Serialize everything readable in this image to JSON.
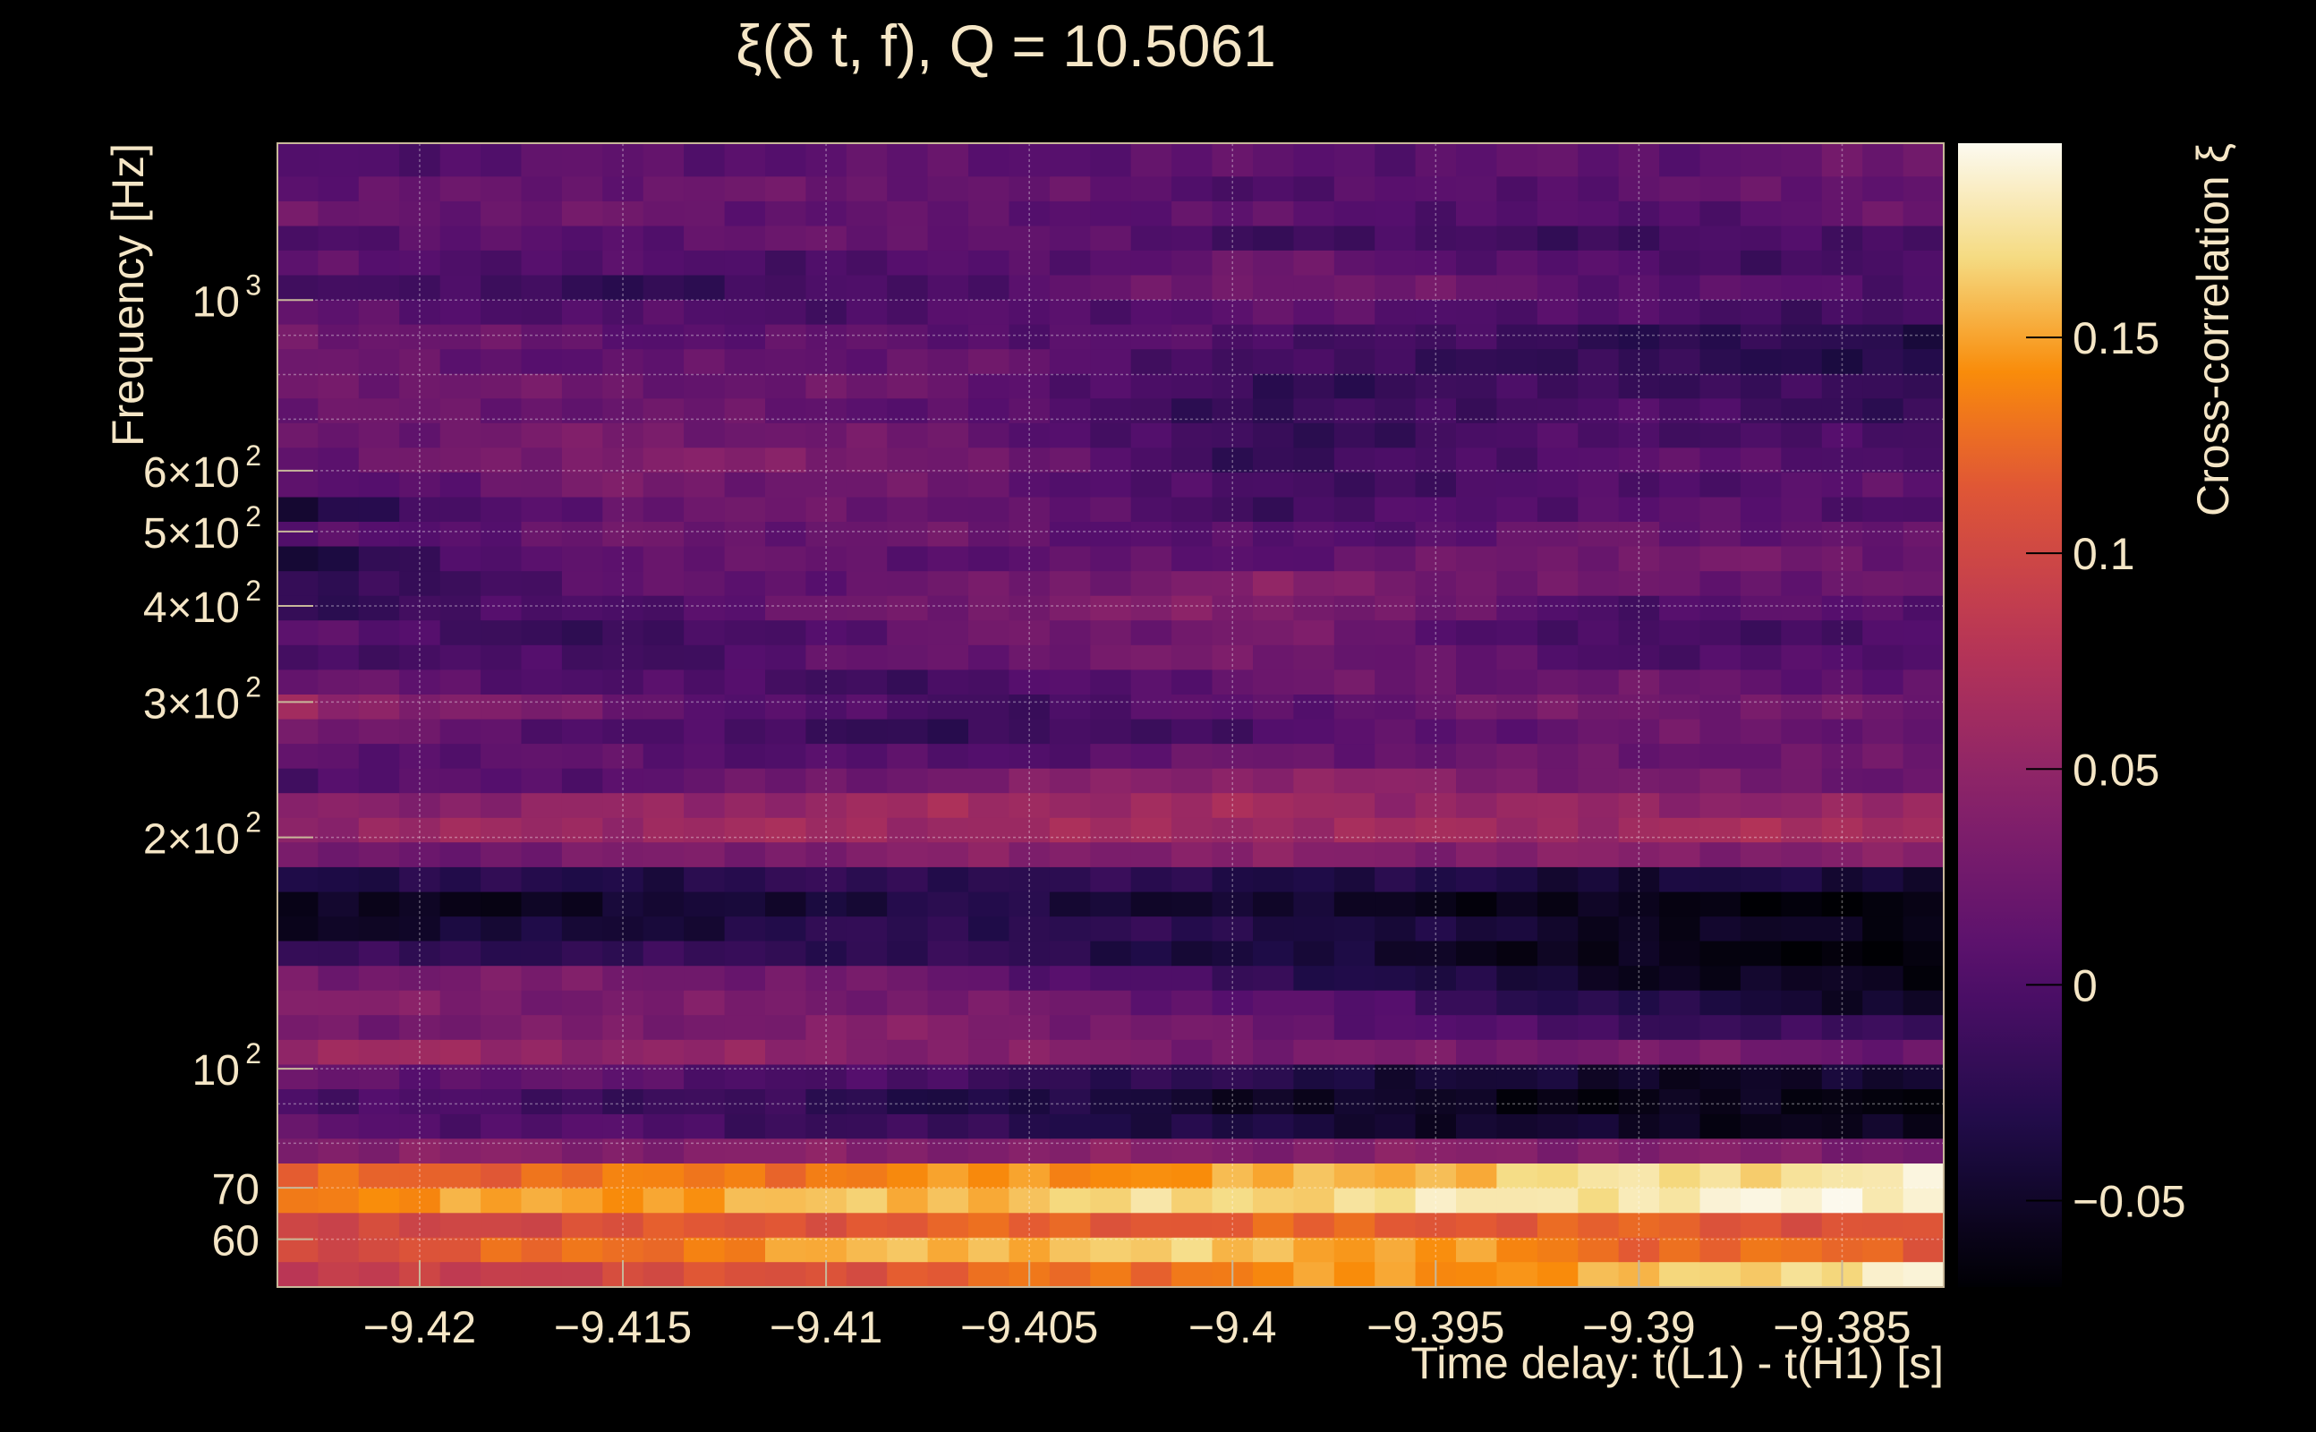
{
  "chart_data": {
    "type": "heatmap",
    "title": "ξ(δ t, f), Q = 10.5061",
    "xlabel": "Time delay: t(L1) - t(H1) [s]",
    "ylabel": "Frequency [Hz]",
    "colorbar_label": "Cross-correlation ξ",
    "x_range": [
      -9.4235,
      -9.3825
    ],
    "y_range": [
      52,
      1600
    ],
    "y_scale": "log",
    "z_range": [
      -0.07,
      0.195
    ],
    "grid": true,
    "x_ticks": [
      {
        "value": -9.42,
        "label": "−9.42"
      },
      {
        "value": -9.415,
        "label": "−9.415"
      },
      {
        "value": -9.41,
        "label": "−9.41"
      },
      {
        "value": -9.405,
        "label": "−9.405"
      },
      {
        "value": -9.4,
        "label": "−9.4"
      },
      {
        "value": -9.395,
        "label": "−9.395"
      },
      {
        "value": -9.39,
        "label": "−9.39"
      },
      {
        "value": -9.385,
        "label": "−9.385"
      }
    ],
    "y_ticks": [
      {
        "value": 60,
        "base": "60",
        "exp": ""
      },
      {
        "value": 70,
        "base": "70",
        "exp": ""
      },
      {
        "value": 100,
        "base": "10",
        "exp": "2"
      },
      {
        "value": 200,
        "base": "2×10",
        "exp": "2"
      },
      {
        "value": 300,
        "base": "3×10",
        "exp": "2"
      },
      {
        "value": 400,
        "base": "4×10",
        "exp": "2"
      },
      {
        "value": 500,
        "base": "5×10",
        "exp": "2"
      },
      {
        "value": 600,
        "base": "6×10",
        "exp": "2"
      },
      {
        "value": 1000,
        "base": "10",
        "exp": "3"
      }
    ],
    "colorbar_ticks": [
      {
        "value": -0.05,
        "label": "−0.05"
      },
      {
        "value": 0,
        "label": "0"
      },
      {
        "value": 0.05,
        "label": "0.05"
      },
      {
        "value": 0.1,
        "label": "0.1"
      },
      {
        "value": 0.15,
        "label": "0.15"
      }
    ],
    "x_bins": 41,
    "frequency_bands": [
      {
        "f_low": 52.0,
        "f_high": 56.1,
        "values": [
          0.08,
          0.1,
          0.12,
          0.14,
          0.15,
          0.19
        ]
      },
      {
        "f_low": 56.1,
        "f_high": 60.4,
        "values": [
          0.1,
          0.13,
          0.16,
          0.16,
          0.13,
          0.12
        ]
      },
      {
        "f_low": 60.4,
        "f_high": 65.0,
        "values": [
          0.09,
          0.11,
          0.12,
          0.12,
          0.12,
          0.11
        ]
      },
      {
        "f_low": 65.0,
        "f_high": 70.0,
        "values": [
          0.14,
          0.15,
          0.16,
          0.17,
          0.18,
          0.19
        ]
      },
      {
        "f_low": 70.0,
        "f_high": 75.4,
        "values": [
          0.12,
          0.13,
          0.14,
          0.15,
          0.17,
          0.18
        ]
      },
      {
        "f_low": 75.4,
        "f_high": 81.2,
        "values": [
          0.04,
          0.04,
          0.04,
          0.04,
          0.04,
          0.03
        ]
      },
      {
        "f_low": 81.2,
        "f_high": 87.4,
        "values": [
          0.01,
          0.0,
          -0.02,
          -0.04,
          -0.05,
          -0.06
        ]
      },
      {
        "f_low": 87.4,
        "f_high": 94.2,
        "values": [
          0.0,
          -0.01,
          -0.03,
          -0.05,
          -0.06,
          -0.06
        ]
      },
      {
        "f_low": 94.2,
        "f_high": 101.4,
        "values": [
          0.02,
          0.01,
          -0.01,
          -0.03,
          -0.05,
          -0.05
        ]
      },
      {
        "f_low": 101.4,
        "f_high": 109.2,
        "values": [
          0.06,
          0.05,
          0.04,
          0.03,
          0.03,
          0.02
        ]
      },
      {
        "f_low": 109.2,
        "f_high": 117.6,
        "values": [
          0.03,
          0.03,
          0.04,
          0.02,
          -0.01,
          -0.02
        ]
      },
      {
        "f_low": 117.6,
        "f_high": 126.6,
        "values": [
          0.04,
          0.03,
          0.03,
          0.01,
          -0.03,
          -0.05
        ]
      },
      {
        "f_low": 126.6,
        "f_high": 136.3,
        "values": [
          0.03,
          0.03,
          0.02,
          -0.02,
          -0.05,
          -0.06
        ]
      },
      {
        "f_low": 136.3,
        "f_high": 146.8,
        "values": [
          -0.02,
          -0.02,
          -0.02,
          -0.04,
          -0.06,
          -0.07
        ]
      },
      {
        "f_low": 146.8,
        "f_high": 158.0,
        "values": [
          -0.05,
          -0.04,
          -0.02,
          -0.03,
          -0.05,
          -0.06
        ]
      },
      {
        "f_low": 158.0,
        "f_high": 170.1,
        "values": [
          -0.06,
          -0.05,
          -0.03,
          -0.05,
          -0.06,
          -0.07
        ]
      },
      {
        "f_low": 170.1,
        "f_high": 183.2,
        "values": [
          -0.03,
          -0.03,
          -0.02,
          -0.03,
          -0.04,
          -0.04
        ]
      },
      {
        "f_low": 183.2,
        "f_high": 197.3,
        "values": [
          0.02,
          0.03,
          0.04,
          0.04,
          0.04,
          0.04
        ]
      },
      {
        "f_low": 197.3,
        "f_high": 212.4,
        "values": [
          0.05,
          0.06,
          0.06,
          0.06,
          0.06,
          0.07
        ]
      },
      {
        "f_low": 212.4,
        "f_high": 228.7,
        "values": [
          0.04,
          0.05,
          0.06,
          0.06,
          0.05,
          0.05
        ]
      },
      {
        "f_low": 228.7,
        "f_high": 246.2,
        "values": [
          0.0,
          0.01,
          0.03,
          0.05,
          0.03,
          0.02
        ]
      },
      {
        "f_low": 246.2,
        "f_high": 265.1,
        "values": [
          0.01,
          0.01,
          0.0,
          0.02,
          0.02,
          0.02
        ]
      },
      {
        "f_low": 265.1,
        "f_high": 285.4,
        "values": [
          0.03,
          0.0,
          -0.02,
          0.0,
          0.02,
          0.02
        ]
      },
      {
        "f_low": 285.4,
        "f_high": 307.3,
        "values": [
          0.06,
          0.02,
          -0.01,
          0.01,
          0.03,
          0.02
        ]
      },
      {
        "f_low": 307.3,
        "f_high": 330.9,
        "values": [
          0.02,
          0.0,
          -0.01,
          0.02,
          0.02,
          0.01
        ]
      },
      {
        "f_low": 330.9,
        "f_high": 356.3,
        "values": [
          0.0,
          -0.01,
          0.02,
          0.03,
          0.0,
          0.0
        ]
      },
      {
        "f_low": 356.3,
        "f_high": 383.6,
        "values": [
          0.01,
          -0.02,
          0.02,
          0.03,
          -0.01,
          0.0
        ]
      },
      {
        "f_low": 383.6,
        "f_high": 413.0,
        "values": [
          -0.02,
          0.0,
          0.03,
          0.04,
          0.0,
          0.01
        ]
      },
      {
        "f_low": 413.0,
        "f_high": 444.7,
        "values": [
          -0.03,
          0.01,
          0.02,
          0.04,
          0.02,
          0.02
        ]
      },
      {
        "f_low": 444.7,
        "f_high": 478.8,
        "values": [
          -0.04,
          0.02,
          0.01,
          0.01,
          0.03,
          0.02
        ]
      },
      {
        "f_low": 478.8,
        "f_high": 515.5,
        "values": [
          0.0,
          0.02,
          0.02,
          0.0,
          0.02,
          0.01
        ]
      },
      {
        "f_low": 515.5,
        "f_high": 555.0,
        "values": [
          -0.04,
          0.02,
          0.02,
          -0.01,
          0.01,
          0.0
        ]
      },
      {
        "f_low": 555.0,
        "f_high": 597.6,
        "values": [
          0.0,
          0.03,
          0.02,
          -0.01,
          0.0,
          0.01
        ]
      },
      {
        "f_low": 597.6,
        "f_high": 643.4,
        "values": [
          0.01,
          0.04,
          0.03,
          -0.02,
          0.01,
          0.0
        ]
      },
      {
        "f_low": 643.4,
        "f_high": 692.7,
        "values": [
          0.02,
          0.03,
          0.02,
          -0.02,
          0.0,
          -0.01
        ]
      },
      {
        "f_low": 692.7,
        "f_high": 745.8,
        "values": [
          0.02,
          0.02,
          0.01,
          -0.02,
          0.0,
          -0.02
        ]
      },
      {
        "f_low": 745.8,
        "f_high": 803.0,
        "values": [
          0.03,
          0.02,
          0.02,
          -0.02,
          -0.01,
          -0.02
        ]
      },
      {
        "f_low": 803.0,
        "f_high": 864.6,
        "values": [
          0.02,
          0.01,
          0.02,
          -0.01,
          -0.02,
          -0.03
        ]
      },
      {
        "f_low": 864.6,
        "f_high": 930.9,
        "values": [
          0.03,
          0.01,
          0.01,
          0.0,
          -0.02,
          -0.03
        ]
      },
      {
        "f_low": 930.9,
        "f_high": 1002.3,
        "values": [
          0.01,
          0.0,
          0.0,
          0.01,
          0.0,
          -0.01
        ]
      },
      {
        "f_low": 1002.3,
        "f_high": 1079.1,
        "values": [
          0.0,
          -0.02,
          0.0,
          0.03,
          0.01,
          0.0
        ]
      },
      {
        "f_low": 1079.1,
        "f_high": 1161.9,
        "values": [
          0.01,
          0.0,
          0.0,
          0.02,
          0.0,
          -0.01
        ]
      },
      {
        "f_low": 1161.9,
        "f_high": 1250.9,
        "values": [
          0.0,
          0.01,
          0.02,
          -0.01,
          -0.01,
          0.0
        ]
      },
      {
        "f_low": 1250.9,
        "f_high": 1346.8,
        "values": [
          0.02,
          0.02,
          0.01,
          0.01,
          0.0,
          0.02
        ]
      },
      {
        "f_low": 1346.8,
        "f_high": 1450.1,
        "values": [
          0.01,
          0.02,
          0.02,
          0.0,
          0.01,
          0.02
        ]
      },
      {
        "f_low": 1450.1,
        "f_high": 1600.0,
        "values": [
          0.0,
          0.01,
          0.01,
          0.01,
          0.01,
          0.02
        ]
      }
    ],
    "band_value_columns_at_x": [
      -9.4235,
      -9.415,
      -9.407,
      -9.399,
      -9.391,
      -9.3825
    ]
  }
}
